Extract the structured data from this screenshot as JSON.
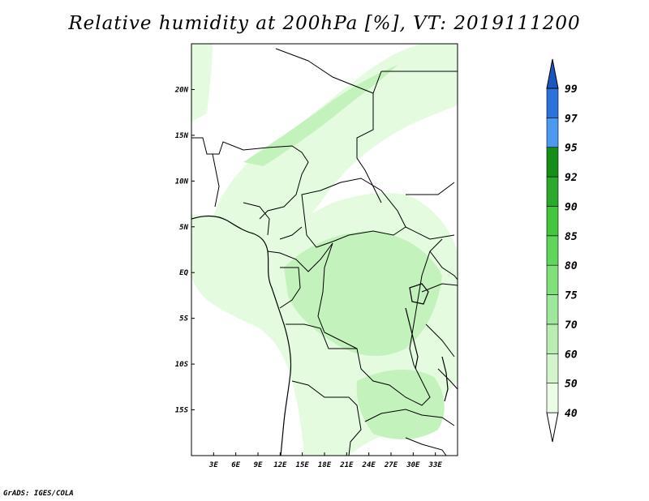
{
  "title": "Relative humidity at 200hPa [%], VT: 2019111200",
  "credit": "GrADS: IGES/COLA",
  "map": {
    "lon_range": [
      0,
      36
    ],
    "lat_range": [
      -20,
      25
    ],
    "x_ticks": [
      {
        "lon": 3,
        "label": "3E"
      },
      {
        "lon": 6,
        "label": "6E"
      },
      {
        "lon": 9,
        "label": "9E"
      },
      {
        "lon": 12,
        "label": "12E"
      },
      {
        "lon": 15,
        "label": "15E"
      },
      {
        "lon": 18,
        "label": "18E"
      },
      {
        "lon": 21,
        "label": "21E"
      },
      {
        "lon": 24,
        "label": "24E"
      },
      {
        "lon": 27,
        "label": "27E"
      },
      {
        "lon": 30,
        "label": "30E"
      },
      {
        "lon": 33,
        "label": "33E"
      }
    ],
    "y_ticks": [
      {
        "lat": 20,
        "label": "20N"
      },
      {
        "lat": 15,
        "label": "15N"
      },
      {
        "lat": 10,
        "label": "10N"
      },
      {
        "lat": 5,
        "label": "5N"
      },
      {
        "lat": 0,
        "label": "EQ"
      },
      {
        "lat": -5,
        "label": "5S"
      },
      {
        "lat": -10,
        "label": "10S"
      },
      {
        "lat": -15,
        "label": "15S"
      }
    ],
    "fill_colors": {
      "light": "#e4fbe0",
      "mid": "#c4f2bc",
      "strong": "#a6e99b"
    }
  },
  "colorbar": {
    "levels": [
      "40",
      "50",
      "60",
      "70",
      "75",
      "80",
      "85",
      "90",
      "92",
      "95",
      "97",
      "99"
    ],
    "colors": [
      "#ffffff",
      "#eafbe6",
      "#d2f5cc",
      "#b8efb0",
      "#9de89a",
      "#80e07a",
      "#5fd55a",
      "#42c63c",
      "#2ba92a",
      "#168f18",
      "#4c9aef",
      "#2b72dc",
      "#1a55c4"
    ]
  }
}
